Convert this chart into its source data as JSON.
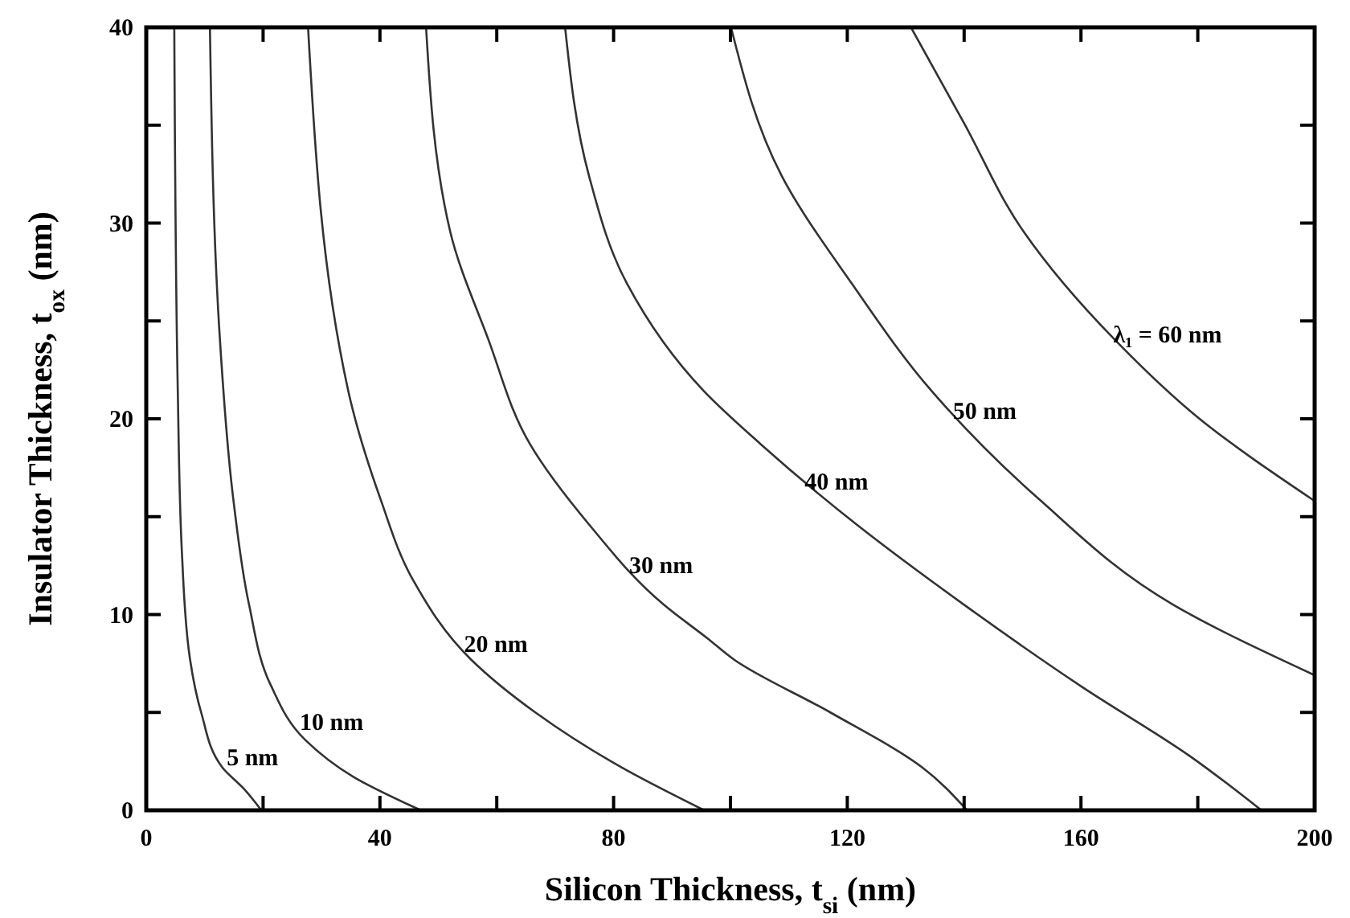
{
  "chart_data": {
    "type": "line",
    "xlabel": "Silicon Thickness, t$_{si}$  (nm)",
    "ylabel": "Insulator Thickness, t$_{ox}$  (nm)",
    "xlim": [
      0,
      200
    ],
    "ylim": [
      0,
      40
    ],
    "xticks": [
      0,
      {
        "value": 20,
        "label": null
      },
      40,
      {
        "value": 60,
        "label": null
      },
      80,
      {
        "value": 100,
        "label": null
      },
      120,
      {
        "value": 140,
        "label": null
      },
      160,
      {
        "value": 180,
        "label": null
      },
      200
    ],
    "yticks": [
      0,
      {
        "value": 5,
        "label": null
      },
      10,
      {
        "value": 15,
        "label": null
      },
      20,
      {
        "value": 25,
        "label": null
      },
      30,
      {
        "value": 35,
        "label": null
      },
      40
    ],
    "grid": false,
    "marker": "none",
    "line_style": "solid",
    "series": [
      {
        "name": "5 nm",
        "color": "#333333",
        "x": [
          4.8,
          5.4,
          6.1,
          7.5,
          9.4,
          13.0,
          16.7,
          19.7
        ],
        "values": [
          40,
          21.4,
          13.2,
          7.7,
          5.0,
          2.2,
          1.1,
          0
        ]
      },
      {
        "name": "10 nm",
        "color": "#333333",
        "x": [
          10.9,
          12.6,
          14.9,
          17.6,
          21.3,
          27.2,
          35.5,
          47
        ],
        "values": [
          40,
          24.1,
          15.9,
          10.5,
          6.4,
          3.6,
          1.7,
          0
        ]
      },
      {
        "name": "20 nm",
        "color": "#333333",
        "x": [
          27.7,
          34.6,
          40.1,
          45.6,
          55.6,
          66.6,
          81.3,
          95.5
        ],
        "values": [
          40,
          21.4,
          15.9,
          11.8,
          7.7,
          5.0,
          2.2,
          0
        ]
      },
      {
        "name": "30 nm",
        "color": "#333333",
        "x": [
          47.9,
          52.0,
          58.5,
          65.7,
          75.8,
          88.6,
          96,
          100.6,
          117.1,
          132.8,
          140.5
        ],
        "values": [
          40,
          29.6,
          24.1,
          18.7,
          14.6,
          10.5,
          8.8,
          7.7,
          5.0,
          2.2,
          0
        ]
      },
      {
        "name": "40 nm",
        "color": "#333333",
        "x": [
          71.7,
          75.8,
          82.3,
          95.5,
          105.2,
          121.6,
          140,
          160.2,
          178.5,
          190.9
        ],
        "values": [
          40,
          32.4,
          26.9,
          21.4,
          18.7,
          14.6,
          10.5,
          6.3,
          2.8,
          0
        ]
      },
      {
        "name": "50 nm",
        "color": "#333333",
        "x": [
          100.1,
          108.8,
          120.8,
          134.5,
          152.8,
          175.8,
          200
        ],
        "values": [
          40,
          32.4,
          26.9,
          21.4,
          15.9,
          10.5,
          6.9
        ]
      },
      {
        "name": "λ₁ = 60 nm",
        "color": "#333333",
        "x": [
          130.9,
          140,
          150.1,
          165.6,
          180.3,
          200
        ],
        "values": [
          40,
          35.1,
          29.6,
          24.1,
          20,
          15.8
        ]
      }
    ]
  }
}
